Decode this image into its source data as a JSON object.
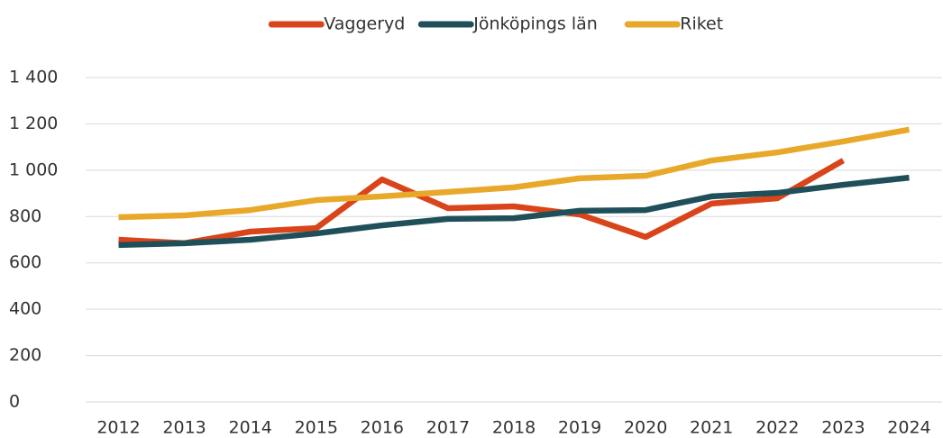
{
  "chart_data": {
    "type": "line",
    "categories": [
      "2012",
      "2013",
      "2014",
      "2015",
      "2016",
      "2017",
      "2018",
      "2019",
      "2020",
      "2021",
      "2022",
      "2023",
      "2024"
    ],
    "series": [
      {
        "name": "Vaggeryd",
        "color": "#d9441a",
        "values": [
          700,
          685,
          735,
          750,
          960,
          836,
          844,
          809,
          712,
          856,
          879,
          1042,
          null
        ]
      },
      {
        "name": "Jönköpings län",
        "color": "#1f5059",
        "values": [
          677,
          685,
          700,
          727,
          762,
          790,
          793,
          825,
          828,
          887,
          902,
          937,
          968
        ]
      },
      {
        "name": "Riket",
        "color": "#e8a92b",
        "values": [
          797,
          805,
          828,
          871,
          887,
          906,
          926,
          965,
          976,
          1042,
          1077,
          1124,
          1175
        ]
      }
    ],
    "ylim": [
      0,
      1400
    ],
    "yticks": [
      0,
      200,
      400,
      600,
      800,
      {
        "value": 1000,
        "label": "1 000"
      },
      {
        "value": 1200,
        "label": "1 200"
      },
      {
        "value": 1400,
        "label": "1 400"
      }
    ],
    "grid": true,
    "legend": "top"
  }
}
